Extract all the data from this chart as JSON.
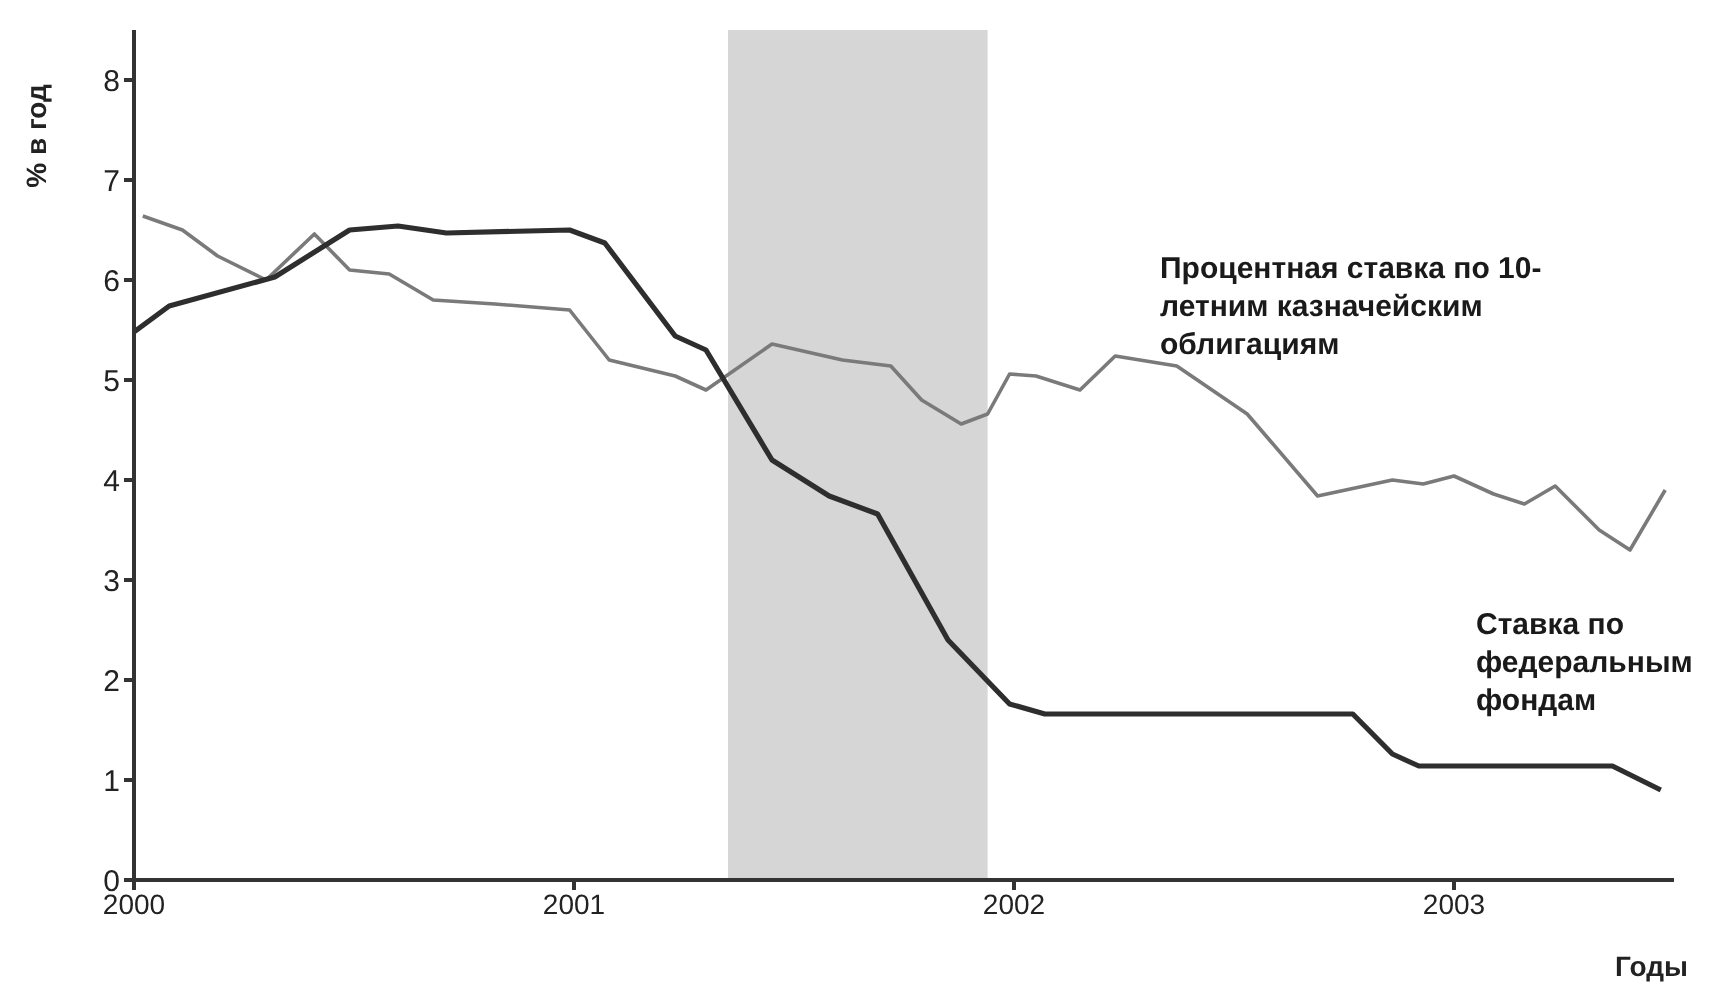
{
  "chart_data": {
    "type": "line",
    "ylabel": "% в год",
    "xlabel": "Годы",
    "xlim": [
      2000,
      2003.5
    ],
    "xticks": [
      2000,
      2001,
      2002,
      2003
    ],
    "ylim": [
      0,
      8.5
    ],
    "yticks": [
      0,
      1,
      2,
      3,
      4,
      5,
      6,
      7,
      8
    ],
    "grid": false,
    "legend": false,
    "marker": "none",
    "line_style": "solid",
    "bands": [
      {
        "axis": "x",
        "from": 2001.35,
        "to": 2001.94,
        "color": "#d6d6d6"
      }
    ],
    "series": [
      {
        "name": "Процентная ставка по 10-летним казначейским облигациям",
        "color": "#7a7a7a",
        "x": [
          2000.02,
          2000.11,
          2000.19,
          2000.3,
          2000.41,
          2000.49,
          2000.58,
          2000.68,
          2000.82,
          2000.99,
          2001.08,
          2001.23,
          2001.3,
          2001.45,
          2001.61,
          2001.72,
          2001.79,
          2001.88,
          2001.94,
          2001.99,
          2002.05,
          2002.15,
          2002.23,
          2002.37,
          2002.53,
          2002.69,
          2002.86,
          2002.93,
          2003.0,
          2003.09,
          2003.16,
          2003.23,
          2003.33,
          2003.4,
          2003.48
        ],
        "values": [
          6.64,
          6.5,
          6.24,
          6.0,
          6.46,
          6.1,
          6.06,
          5.8,
          5.76,
          5.7,
          5.2,
          5.04,
          4.9,
          5.36,
          5.2,
          5.14,
          4.8,
          4.56,
          4.66,
          5.06,
          5.04,
          4.9,
          5.24,
          5.14,
          4.66,
          3.84,
          4.0,
          3.96,
          4.04,
          3.86,
          3.76,
          3.94,
          3.5,
          3.3,
          3.9
        ]
      },
      {
        "name": "Ставка по федеральным фондам",
        "color": "#2e2e2e",
        "x": [
          2000,
          2000.08,
          2000.32,
          2000.49,
          2000.6,
          2000.71,
          2000.99,
          2001.07,
          2001.23,
          2001.3,
          2001.45,
          2001.58,
          2001.69,
          2001.85,
          2001.99,
          2002.07,
          2002.77,
          2002.86,
          2002.92,
          2003.36,
          2003.47
        ],
        "values": [
          5.48,
          5.74,
          6.03,
          6.5,
          6.54,
          6.47,
          6.5,
          6.37,
          5.44,
          5.3,
          4.2,
          3.84,
          3.66,
          2.4,
          1.76,
          1.66,
          1.66,
          1.26,
          1.14,
          1.14,
          0.9
        ]
      }
    ]
  }
}
